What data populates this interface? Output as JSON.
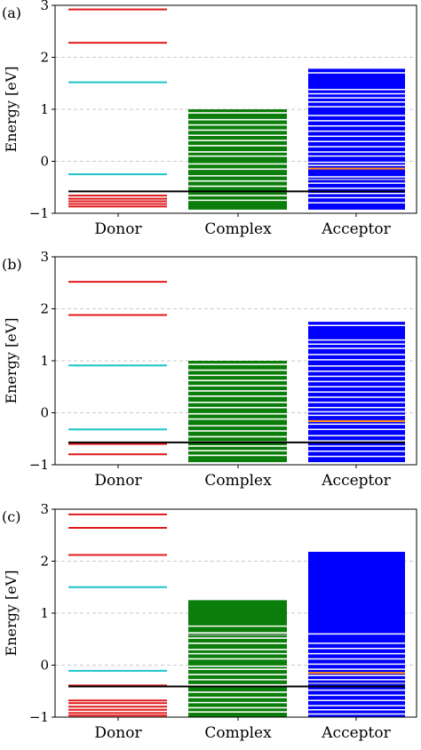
{
  "chart_data": [
    {
      "type": "energy-level-diagram",
      "panel_label": "(a)",
      "ylabel": "Energy [eV]",
      "ylim": [
        -1,
        3
      ],
      "yticks": [
        -1,
        0,
        1,
        2,
        3
      ],
      "grid": "horizontal dashed",
      "categories": [
        "Donor",
        "Complex",
        "Acceptor"
      ],
      "reference_line": -0.58,
      "donor": {
        "red": [
          2.92,
          2.28,
          -0.66,
          -0.72,
          -0.77,
          -0.82,
          -0.87
        ],
        "cyan": [
          1.52,
          -0.25
        ]
      },
      "complex": {
        "fill_range": [
          -0.93,
          1.0
        ],
        "white_gaps": [
          0.93,
          0.8,
          0.7,
          0.6,
          0.5,
          0.4,
          0.3,
          0.18,
          0.1,
          -0.05,
          -0.15,
          -0.28,
          -0.38,
          -0.48,
          -0.58,
          -0.66,
          -0.75
        ]
      },
      "acceptor": {
        "fill_range": [
          -0.93,
          1.78
        ],
        "white_gaps": [
          1.7,
          1.38,
          1.3,
          1.22,
          1.14,
          1.05,
          0.88,
          0.78,
          0.68,
          0.58,
          0.48,
          0.38,
          0.28,
          0.18,
          0.1,
          -0.02,
          -0.08,
          -0.3,
          -0.42,
          -0.52,
          -0.62,
          -0.7,
          -0.8
        ],
        "orange": [
          -0.14
        ],
        "gray": [
          -0.35
        ]
      }
    },
    {
      "type": "energy-level-diagram",
      "panel_label": "(b)",
      "ylabel": "Energy [eV]",
      "ylim": [
        -1,
        3
      ],
      "yticks": [
        -1,
        0,
        1,
        2,
        3
      ],
      "grid": "horizontal dashed",
      "categories": [
        "Donor",
        "Complex",
        "Acceptor"
      ],
      "reference_line": -0.57,
      "donor": {
        "red": [
          2.52,
          1.88,
          -0.6,
          -0.8
        ],
        "cyan": [
          0.91,
          -0.32
        ]
      },
      "complex": {
        "fill_range": [
          -0.95,
          1.0
        ],
        "white_gaps": [
          0.93,
          0.82,
          0.72,
          0.62,
          0.52,
          0.42,
          0.32,
          0.2,
          0.1,
          -0.02,
          -0.12,
          -0.25,
          -0.35,
          -0.46,
          -0.56,
          -0.64,
          -0.73,
          -0.82
        ]
      },
      "acceptor": {
        "fill_range": [
          -0.95,
          1.75
        ],
        "white_gaps": [
          1.68,
          1.4,
          1.32,
          1.24,
          1.12,
          1.02,
          0.9,
          0.8,
          0.7,
          0.6,
          0.5,
          0.4,
          0.3,
          0.2,
          0.1,
          0.02,
          -0.05,
          -0.22,
          -0.32,
          -0.44,
          -0.54,
          -0.64,
          -0.74,
          -0.84
        ],
        "orange": [
          -0.16
        ],
        "gray": []
      }
    },
    {
      "type": "energy-level-diagram",
      "panel_label": "(c)",
      "ylabel": "Energy [eV]",
      "ylim": [
        -1,
        3
      ],
      "yticks": [
        -1,
        0,
        1,
        2,
        3
      ],
      "grid": "horizontal dashed",
      "categories": [
        "Donor",
        "Complex",
        "Acceptor"
      ],
      "reference_line": -0.41,
      "donor": {
        "red": [
          2.9,
          2.64,
          2.12,
          -0.39,
          -0.68,
          -0.73,
          -0.8,
          -0.86,
          -0.92,
          -0.97
        ],
        "cyan": [
          1.5,
          -0.11
        ]
      },
      "complex": {
        "fill_range": [
          -1.0,
          1.25
        ],
        "white_gaps": [
          0.75,
          0.62,
          0.52,
          0.42,
          0.3,
          0.22,
          0.12,
          -0.02,
          -0.08,
          -0.18,
          -0.28,
          -0.38,
          -0.52,
          -0.62,
          -0.72,
          -0.82,
          -0.9
        ],
        "gray": [
          0.58
        ]
      },
      "acceptor": {
        "fill_range": [
          -1.0,
          2.18
        ],
        "white_gaps": [
          0.6,
          0.42,
          0.32,
          0.22,
          0.12,
          0.02,
          -0.08,
          -0.2,
          -0.28,
          -0.48,
          -0.58,
          -0.68,
          -0.78,
          -0.86,
          -0.94
        ],
        "orange": [
          -0.15
        ],
        "gray": [
          -0.35
        ]
      }
    }
  ],
  "colors": {
    "donor_red": "#e0191b",
    "donor_cyan": "#1ec3c8",
    "complex_green": "#0a7d0a",
    "acceptor_blue": "#0000ff",
    "acceptor_orange": "#ff8c1a",
    "reference_black": "#000000",
    "grid_gray": "#b8b8b8"
  }
}
